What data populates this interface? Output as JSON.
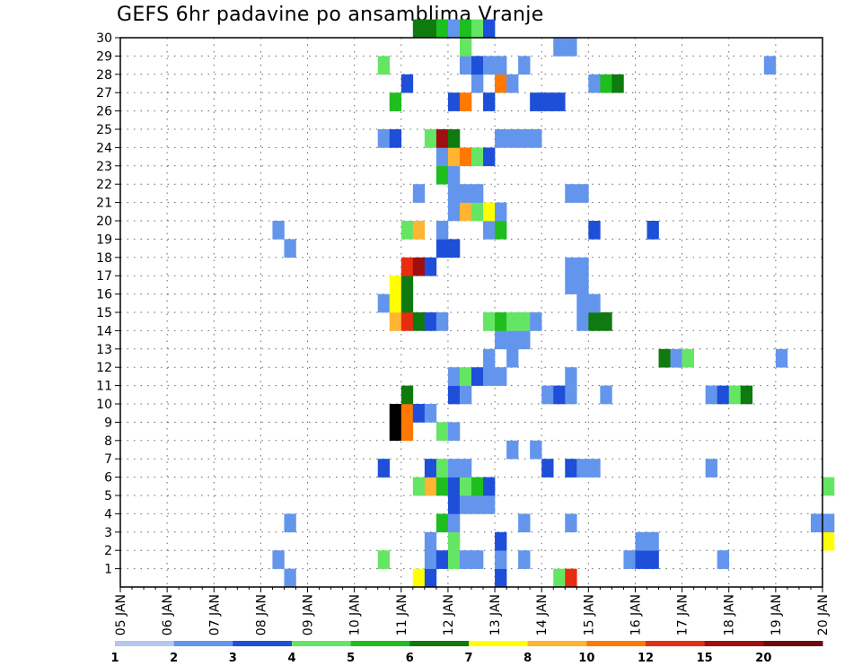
{
  "chart_data": {
    "type": "heatmap",
    "title": "GEFS 6hr padavine po ansamblima Vranje",
    "x_ticks": [
      "05 JAN",
      "06 JAN",
      "07 JAN",
      "08 JAN",
      "09 JAN",
      "10 JAN",
      "11 JAN",
      "12 JAN",
      "13 JAN",
      "14 JAN",
      "15 JAN",
      "16 JAN",
      "17 JAN",
      "18 JAN",
      "19 JAN",
      "20 JAN"
    ],
    "y_ticks": [
      "1",
      "2",
      "3",
      "4",
      "5",
      "6",
      "7",
      "8",
      "9",
      "10",
      "11",
      "12",
      "13",
      "14",
      "15",
      "16",
      "17",
      "18",
      "19",
      "20",
      "21",
      "22",
      "23",
      "24",
      "25",
      "26",
      "27",
      "28",
      "29",
      "30"
    ],
    "ylim": [
      0,
      30
    ],
    "grid": true,
    "colorbar_labels": [
      "1",
      "2",
      "3",
      "4",
      "5",
      "6",
      "7",
      "8",
      "10",
      "12",
      "15",
      "20"
    ],
    "colorbar_colors": [
      "#b4c6f0",
      "#6495ed",
      "#1e4fd8",
      "#64e664",
      "#1ebe1e",
      "#0f7a0f",
      "#ffff00",
      "#ffb432",
      "#ff7800",
      "#e62d0f",
      "#a00f0f",
      "#6e0a0a"
    ],
    "cells": [
      {
        "member": 0,
        "day": 6.25,
        "level": 6
      },
      {
        "member": 0,
        "day": 6.5,
        "level": 2
      },
      {
        "member": 0,
        "day": 8.0,
        "level": 2
      },
      {
        "member": 0,
        "day": 9.25,
        "level": 3
      },
      {
        "member": 0,
        "day": 9.5,
        "level": 9
      },
      {
        "member": 0,
        "day": 3.5,
        "level": 1
      },
      {
        "member": 1,
        "day": 3.25,
        "level": 1
      },
      {
        "member": 1,
        "day": 5.5,
        "level": 3
      },
      {
        "member": 1,
        "day": 6.5,
        "level": 1
      },
      {
        "member": 1,
        "day": 6.75,
        "level": 2
      },
      {
        "member": 1,
        "day": 7.0,
        "level": 3
      },
      {
        "member": 1,
        "day": 7.25,
        "level": 1
      },
      {
        "member": 1,
        "day": 7.5,
        "level": 1
      },
      {
        "member": 1,
        "day": 8.0,
        "level": 1
      },
      {
        "member": 1,
        "day": 8.5,
        "level": 1
      },
      {
        "member": 1,
        "day": 10.75,
        "level": 1
      },
      {
        "member": 1,
        "day": 11.0,
        "level": 2
      },
      {
        "member": 1,
        "day": 11.25,
        "level": 2
      },
      {
        "member": 1,
        "day": 12.75,
        "level": 1
      },
      {
        "member": 2,
        "day": 6.5,
        "level": 1
      },
      {
        "member": 2,
        "day": 7.0,
        "level": 3
      },
      {
        "member": 2,
        "day": 8.0,
        "level": 2
      },
      {
        "member": 2,
        "day": 11.0,
        "level": 1
      },
      {
        "member": 2,
        "day": 11.25,
        "level": 1
      },
      {
        "member": 2,
        "day": 15.0,
        "level": 6
      },
      {
        "member": 3,
        "day": 3.5,
        "level": 1
      },
      {
        "member": 3,
        "day": 6.75,
        "level": 4
      },
      {
        "member": 3,
        "day": 7.0,
        "level": 1
      },
      {
        "member": 3,
        "day": 8.5,
        "level": 1
      },
      {
        "member": 3,
        "day": 9.5,
        "level": 1
      },
      {
        "member": 3,
        "day": 14.75,
        "level": 1
      },
      {
        "member": 3,
        "day": 15.0,
        "level": 1
      },
      {
        "member": 4,
        "day": 7.0,
        "level": 2
      },
      {
        "member": 4,
        "day": 7.25,
        "level": 1
      },
      {
        "member": 4,
        "day": 7.5,
        "level": 1
      },
      {
        "member": 4,
        "day": 7.75,
        "level": 1
      },
      {
        "member": 5,
        "day": 6.25,
        "level": 3
      },
      {
        "member": 5,
        "day": 6.5,
        "level": 7
      },
      {
        "member": 5,
        "day": 6.75,
        "level": 4
      },
      {
        "member": 5,
        "day": 7.0,
        "level": 2
      },
      {
        "member": 5,
        "day": 7.25,
        "level": 3
      },
      {
        "member": 5,
        "day": 7.5,
        "level": 4
      },
      {
        "member": 5,
        "day": 7.75,
        "level": 2
      },
      {
        "member": 5,
        "day": 15.0,
        "level": 3
      },
      {
        "member": 6,
        "day": 5.5,
        "level": 2
      },
      {
        "member": 6,
        "day": 6.5,
        "level": 2
      },
      {
        "member": 6,
        "day": 6.75,
        "level": 3
      },
      {
        "member": 6,
        "day": 7.0,
        "level": 1
      },
      {
        "member": 6,
        "day": 7.25,
        "level": 1
      },
      {
        "member": 6,
        "day": 9.0,
        "level": 2
      },
      {
        "member": 6,
        "day": 9.5,
        "level": 2
      },
      {
        "member": 6,
        "day": 9.75,
        "level": 1
      },
      {
        "member": 6,
        "day": 10.0,
        "level": 1
      },
      {
        "member": 6,
        "day": 12.5,
        "level": 1
      },
      {
        "member": 7,
        "day": 8.25,
        "level": 1
      },
      {
        "member": 7,
        "day": 8.75,
        "level": 1
      },
      {
        "member": 8,
        "day": 5.75,
        "level": 12
      },
      {
        "member": 8,
        "day": 6.0,
        "level": 8
      },
      {
        "member": 8,
        "day": 6.75,
        "level": 3
      },
      {
        "member": 8,
        "day": 7.0,
        "level": 1
      },
      {
        "member": 9,
        "day": 5.75,
        "level": 12
      },
      {
        "member": 9,
        "day": 6.0,
        "level": 8
      },
      {
        "member": 9,
        "day": 6.25,
        "level": 2
      },
      {
        "member": 9,
        "day": 6.5,
        "level": 1
      },
      {
        "member": 10,
        "day": 6.0,
        "level": 5
      },
      {
        "member": 10,
        "day": 7.0,
        "level": 2
      },
      {
        "member": 10,
        "day": 7.25,
        "level": 1
      },
      {
        "member": 10,
        "day": 9.0,
        "level": 1
      },
      {
        "member": 10,
        "day": 9.25,
        "level": 2
      },
      {
        "member": 10,
        "day": 9.5,
        "level": 1
      },
      {
        "member": 10,
        "day": 10.25,
        "level": 1
      },
      {
        "member": 10,
        "day": 12.5,
        "level": 1
      },
      {
        "member": 10,
        "day": 12.75,
        "level": 2
      },
      {
        "member": 10,
        "day": 13.0,
        "level": 3
      },
      {
        "member": 10,
        "day": 13.25,
        "level": 5
      },
      {
        "member": 11,
        "day": 7.0,
        "level": 1
      },
      {
        "member": 11,
        "day": 7.25,
        "level": 3
      },
      {
        "member": 11,
        "day": 7.5,
        "level": 2
      },
      {
        "member": 11,
        "day": 7.75,
        "level": 1
      },
      {
        "member": 11,
        "day": 8.0,
        "level": 1
      },
      {
        "member": 11,
        "day": 9.5,
        "level": 1
      },
      {
        "member": 12,
        "day": 7.75,
        "level": 1
      },
      {
        "member": 12,
        "day": 8.25,
        "level": 1
      },
      {
        "member": 12,
        "day": 11.5,
        "level": 5
      },
      {
        "member": 12,
        "day": 11.75,
        "level": 1
      },
      {
        "member": 12,
        "day": 12.0,
        "level": 3
      },
      {
        "member": 12,
        "day": 14.0,
        "level": 1
      },
      {
        "member": 13,
        "day": 8.0,
        "level": 1
      },
      {
        "member": 13,
        "day": 8.25,
        "level": 1
      },
      {
        "member": 13,
        "day": 8.5,
        "level": 1
      },
      {
        "member": 14,
        "day": 5.75,
        "level": 7
      },
      {
        "member": 14,
        "day": 6.0,
        "level": 9
      },
      {
        "member": 14,
        "day": 6.25,
        "level": 5
      },
      {
        "member": 14,
        "day": 6.5,
        "level": 2
      },
      {
        "member": 14,
        "day": 6.75,
        "level": 1
      },
      {
        "member": 14,
        "day": 7.75,
        "level": 3
      },
      {
        "member": 14,
        "day": 8.0,
        "level": 4
      },
      {
        "member": 14,
        "day": 8.25,
        "level": 3
      },
      {
        "member": 14,
        "day": 8.5,
        "level": 3
      },
      {
        "member": 14,
        "day": 8.75,
        "level": 1
      },
      {
        "member": 14,
        "day": 9.75,
        "level": 1
      },
      {
        "member": 14,
        "day": 10.0,
        "level": 5
      },
      {
        "member": 14,
        "day": 10.25,
        "level": 5
      },
      {
        "member": 15,
        "day": 5.5,
        "level": 1
      },
      {
        "member": 15,
        "day": 5.75,
        "level": 6
      },
      {
        "member": 15,
        "day": 6.0,
        "level": 5
      },
      {
        "member": 15,
        "day": 9.75,
        "level": 1
      },
      {
        "member": 15,
        "day": 10.0,
        "level": 1
      },
      {
        "member": 16,
        "day": 5.75,
        "level": 6
      },
      {
        "member": 16,
        "day": 6.0,
        "level": 5
      },
      {
        "member": 16,
        "day": 9.5,
        "level": 1
      },
      {
        "member": 16,
        "day": 9.75,
        "level": 1
      },
      {
        "member": 17,
        "day": 6.0,
        "level": 9
      },
      {
        "member": 17,
        "day": 6.25,
        "level": 10
      },
      {
        "member": 17,
        "day": 6.5,
        "level": 2
      },
      {
        "member": 17,
        "day": 9.5,
        "level": 1
      },
      {
        "member": 17,
        "day": 9.75,
        "level": 1
      },
      {
        "member": 18,
        "day": 3.5,
        "level": 1
      },
      {
        "member": 18,
        "day": 6.75,
        "level": 2
      },
      {
        "member": 18,
        "day": 7.0,
        "level": 2
      },
      {
        "member": 19,
        "day": 3.25,
        "level": 1
      },
      {
        "member": 19,
        "day": 6.0,
        "level": 3
      },
      {
        "member": 19,
        "day": 6.25,
        "level": 7
      },
      {
        "member": 19,
        "day": 6.75,
        "level": 1
      },
      {
        "member": 19,
        "day": 7.75,
        "level": 1
      },
      {
        "member": 19,
        "day": 8.0,
        "level": 4
      },
      {
        "member": 19,
        "day": 10.0,
        "level": 2
      },
      {
        "member": 19,
        "day": 11.25,
        "level": 2
      },
      {
        "member": 20,
        "day": 7.0,
        "level": 1
      },
      {
        "member": 20,
        "day": 7.25,
        "level": 7
      },
      {
        "member": 20,
        "day": 7.5,
        "level": 3
      },
      {
        "member": 20,
        "day": 7.75,
        "level": 6
      },
      {
        "member": 20,
        "day": 8.0,
        "level": 1
      },
      {
        "member": 21,
        "day": 6.25,
        "level": 1
      },
      {
        "member": 21,
        "day": 7.0,
        "level": 1
      },
      {
        "member": 21,
        "day": 7.25,
        "level": 1
      },
      {
        "member": 21,
        "day": 7.5,
        "level": 1
      },
      {
        "member": 21,
        "day": 9.5,
        "level": 1
      },
      {
        "member": 21,
        "day": 9.75,
        "level": 1
      },
      {
        "member": 22,
        "day": 6.75,
        "level": 4
      },
      {
        "member": 22,
        "day": 7.0,
        "level": 1
      },
      {
        "member": 23,
        "day": 6.75,
        "level": 1
      },
      {
        "member": 23,
        "day": 7.0,
        "level": 7
      },
      {
        "member": 23,
        "day": 7.25,
        "level": 8
      },
      {
        "member": 23,
        "day": 7.5,
        "level": 3
      },
      {
        "member": 23,
        "day": 7.75,
        "level": 2
      },
      {
        "member": 24,
        "day": 5.5,
        "level": 1
      },
      {
        "member": 24,
        "day": 5.75,
        "level": 2
      },
      {
        "member": 24,
        "day": 6.5,
        "level": 3
      },
      {
        "member": 24,
        "day": 6.75,
        "level": 10
      },
      {
        "member": 24,
        "day": 7.0,
        "level": 5
      },
      {
        "member": 24,
        "day": 8.0,
        "level": 1
      },
      {
        "member": 24,
        "day": 8.25,
        "level": 1
      },
      {
        "member": 24,
        "day": 8.5,
        "level": 1
      },
      {
        "member": 24,
        "day": 8.75,
        "level": 1
      },
      {
        "member": 26,
        "day": 5.75,
        "level": 4
      },
      {
        "member": 26,
        "day": 7.0,
        "level": 2
      },
      {
        "member": 26,
        "day": 7.25,
        "level": 8
      },
      {
        "member": 26,
        "day": 7.75,
        "level": 2
      },
      {
        "member": 26,
        "day": 8.75,
        "level": 2
      },
      {
        "member": 26,
        "day": 9.0,
        "level": 2
      },
      {
        "member": 26,
        "day": 9.25,
        "level": 2
      },
      {
        "member": 27,
        "day": 6.0,
        "level": 2
      },
      {
        "member": 27,
        "day": 7.5,
        "level": 1
      },
      {
        "member": 27,
        "day": 8.0,
        "level": 8
      },
      {
        "member": 27,
        "day": 8.25,
        "level": 1
      },
      {
        "member": 27,
        "day": 10.0,
        "level": 1
      },
      {
        "member": 27,
        "day": 10.25,
        "level": 4
      },
      {
        "member": 27,
        "day": 10.5,
        "level": 5
      },
      {
        "member": 28,
        "day": 5.5,
        "level": 3
      },
      {
        "member": 28,
        "day": 7.25,
        "level": 1
      },
      {
        "member": 28,
        "day": 7.5,
        "level": 2
      },
      {
        "member": 28,
        "day": 7.75,
        "level": 1
      },
      {
        "member": 28,
        "day": 8.0,
        "level": 1
      },
      {
        "member": 28,
        "day": 8.5,
        "level": 1
      },
      {
        "member": 28,
        "day": 13.75,
        "level": 1
      },
      {
        "member": 29,
        "day": 7.25,
        "level": 3
      },
      {
        "member": 29,
        "day": 9.25,
        "level": 1
      },
      {
        "member": 29,
        "day": 9.5,
        "level": 1
      },
      {
        "member": 30,
        "day": 6.25,
        "level": 5
      },
      {
        "member": 30,
        "day": 6.5,
        "level": 5
      },
      {
        "member": 30,
        "day": 6.75,
        "level": 4
      },
      {
        "member": 30,
        "day": 7.0,
        "level": 1
      },
      {
        "member": 30,
        "day": 7.25,
        "level": 4
      },
      {
        "member": 30,
        "day": 7.5,
        "level": 3
      },
      {
        "member": 30,
        "day": 7.75,
        "level": 2
      }
    ]
  }
}
